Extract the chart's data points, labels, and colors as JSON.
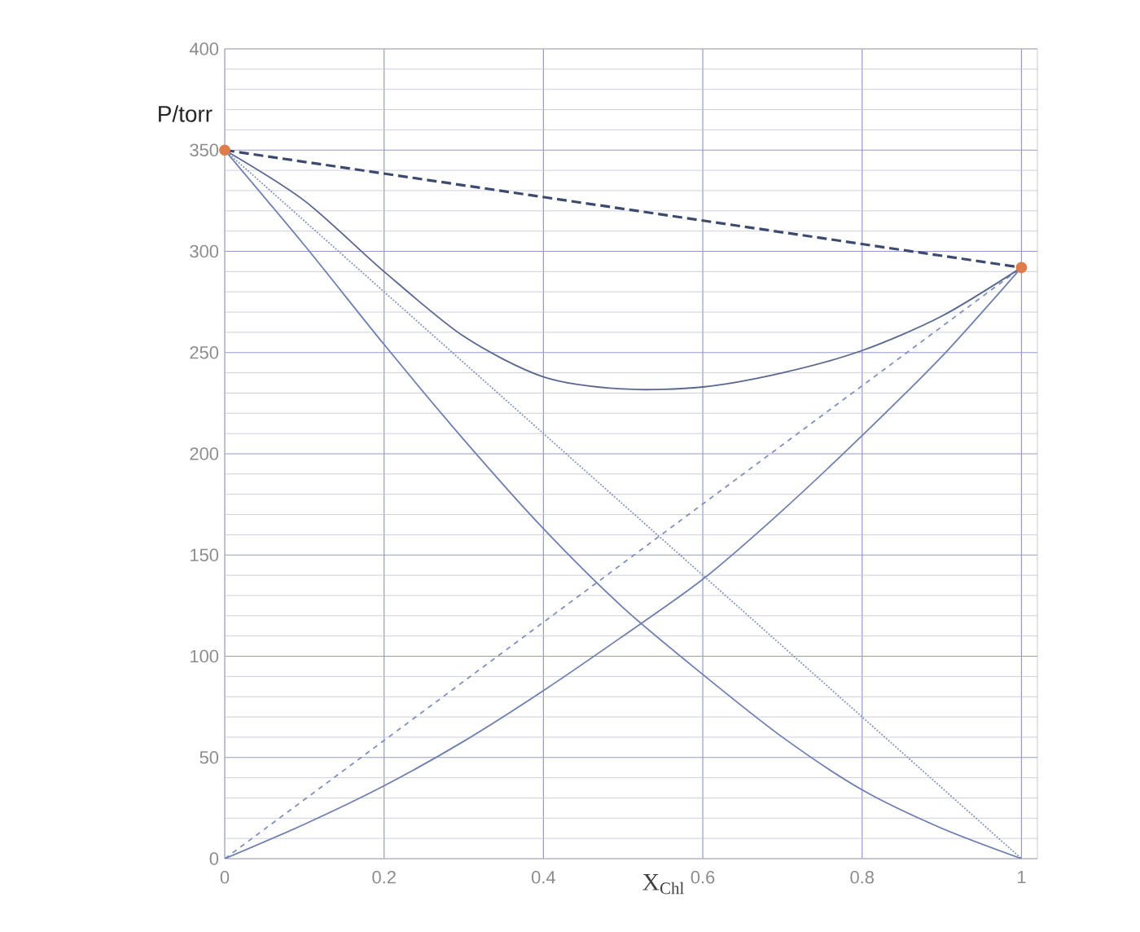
{
  "chart_data": {
    "type": "line",
    "xlabel": "X$_{Chl}$",
    "ylabel": "P/torr",
    "xlim": [
      0,
      1.02
    ],
    "ylim": [
      0,
      400
    ],
    "xticks": [
      0,
      0.2,
      0.4,
      0.6,
      0.8,
      1
    ],
    "yticks": [
      0,
      50,
      100,
      150,
      200,
      250,
      300,
      350,
      400
    ],
    "grid": true,
    "series": [
      {
        "color": "#3c4a6e",
        "line_style": "dashed",
        "x": [
          0,
          1
        ],
        "values": [
          350,
          292
        ]
      },
      {
        "color": "#7f8fc0",
        "line_style": "dotted",
        "x": [
          0,
          1
        ],
        "values": [
          350,
          0
        ]
      },
      {
        "color": "#7f8fc0",
        "line_style": "dashed",
        "x": [
          0,
          1
        ],
        "values": [
          0,
          292
        ]
      },
      {
        "color": "#5a6890",
        "line_style": "solid",
        "x": [
          0,
          0.1,
          0.2,
          0.3,
          0.4,
          0.5,
          0.6,
          0.7,
          0.8,
          0.9,
          1
        ],
        "values": [
          350,
          325,
          290,
          258,
          238,
          232,
          233,
          240,
          251,
          268,
          292
        ]
      },
      {
        "color": "#6f7fb0",
        "line_style": "solid",
        "x": [
          0,
          0.1,
          0.2,
          0.3,
          0.4,
          0.5,
          0.6,
          0.7,
          0.8,
          0.9,
          1
        ],
        "values": [
          350,
          303,
          254,
          207,
          163,
          124,
          91,
          60,
          34,
          15,
          0
        ]
      },
      {
        "color": "#6f7fb0",
        "line_style": "solid",
        "x": [
          0,
          0.1,
          0.2,
          0.3,
          0.4,
          0.5,
          0.6,
          0.7,
          0.8,
          0.9,
          1
        ],
        "values": [
          0,
          17,
          36,
          58,
          83,
          110,
          138,
          172,
          209,
          248,
          292
        ]
      },
      {
        "type": "scatter",
        "color": "#e07b4a",
        "marker": "circle",
        "x": [
          0,
          1
        ],
        "values": [
          350,
          292
        ]
      }
    ]
  }
}
